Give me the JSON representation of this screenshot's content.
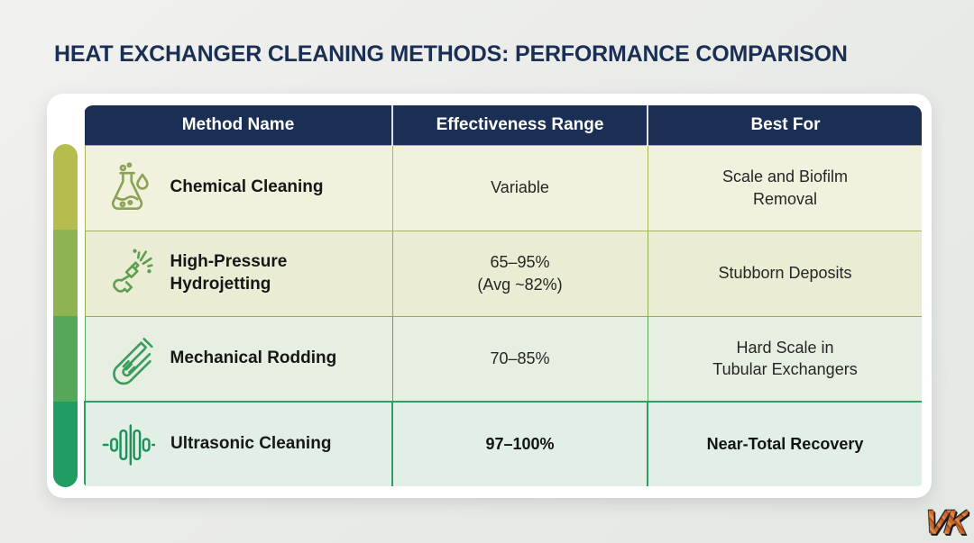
{
  "title": "HEAT EXCHANGER CLEANING METHODS: PERFORMANCE COMPARISON",
  "table": {
    "headers": [
      "Method Name",
      "Effectiveness Range",
      "Best For"
    ],
    "rows": [
      {
        "icon": "flask-icon",
        "icon_color": "#8ba355",
        "method": "Chemical Cleaning",
        "effectiveness": "Variable",
        "best_for": "Scale and Biofilm\nRemoval"
      },
      {
        "icon": "spray-gun-icon",
        "icon_color": "#5f9e50",
        "method": "High-Pressure\nHydrojetting",
        "effectiveness": "65–95%\n(Avg ~82%)",
        "best_for": "Stubborn Deposits"
      },
      {
        "icon": "rod-icon",
        "icon_color": "#3c9c5c",
        "method": "Mechanical Rodding",
        "effectiveness": "70–85%",
        "best_for": "Hard Scale in\nTubular Exchangers"
      },
      {
        "icon": "soundwave-icon",
        "icon_color": "#1c9159",
        "method": "Ultrasonic Cleaning",
        "effectiveness": "97–100%",
        "best_for": "Near-Total Recovery"
      }
    ]
  },
  "performance_bar": {
    "colors": [
      "#b5bd4e",
      "#8db451",
      "#55a75a",
      "#1f9d62"
    ]
  },
  "watermark": {
    "text": "VK"
  }
}
